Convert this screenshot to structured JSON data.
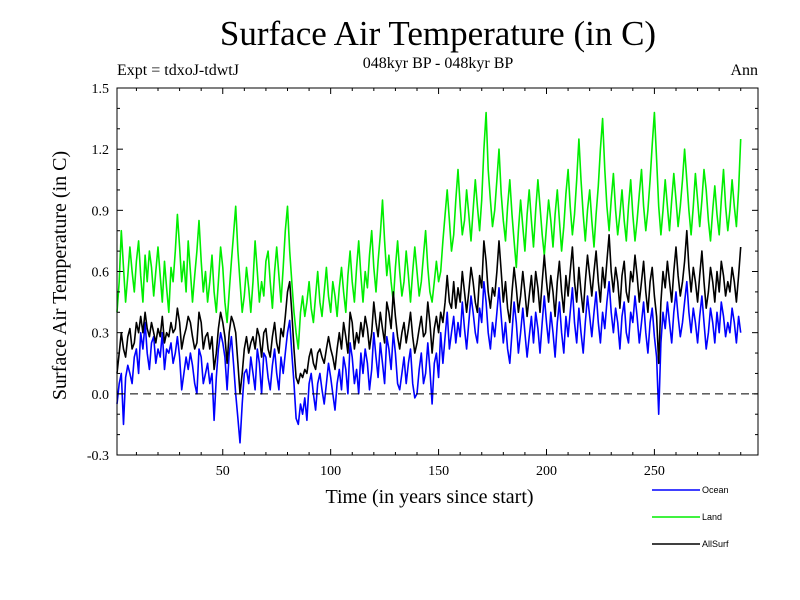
{
  "header": {
    "title": "Surface Air Temperature (in C)",
    "subtitle": "048kyr BP - 048kyr BP",
    "experiment": "Expt = tdxoJ-tdwtJ",
    "period": "Ann"
  },
  "chart_data": {
    "type": "line",
    "title": "Surface Air Temperature (in C)",
    "subtitle": "048kyr BP - 048kyr BP",
    "xlabel": "Time (in years since start)",
    "ylabel": "Surface Air Temperature (in C)",
    "xlim": [
      1,
      298
    ],
    "ylim": [
      -0.3,
      1.5
    ],
    "xticks": [
      50,
      100,
      150,
      200,
      250
    ],
    "yticks": [
      -0.3,
      0.0,
      0.3,
      0.6,
      0.9,
      1.2,
      1.5
    ],
    "ytick_labels": [
      "-0.3",
      "0.0",
      "0.3",
      "0.6",
      "0.9",
      "1.2",
      "1.5"
    ],
    "zero_line": "dashed",
    "grid": false,
    "legend_position": "bottom-right, outside plot",
    "x_step": 1,
    "series": [
      {
        "name": "Ocean",
        "color": "#0000ff",
        "values": [
          -0.05,
          0.05,
          0.1,
          -0.15,
          0.08,
          0.14,
          0.1,
          0.05,
          0.18,
          0.22,
          0.1,
          0.3,
          0.22,
          0.35,
          0.2,
          0.12,
          0.25,
          0.28,
          0.15,
          0.22,
          0.18,
          0.3,
          0.12,
          0.22,
          0.2,
          0.25,
          0.15,
          0.2,
          0.28,
          0.18,
          0.02,
          0.1,
          0.18,
          0.12,
          0.2,
          0.14,
          0.05,
          0.0,
          0.22,
          0.18,
          0.05,
          0.1,
          0.15,
          0.05,
          0.1,
          -0.13,
          0.08,
          0.22,
          0.3,
          0.25,
          0.18,
          0.02,
          0.2,
          0.28,
          0.15,
          0.0,
          -0.12,
          -0.24,
          -0.05,
          0.1,
          0.12,
          0.05,
          0.18,
          0.1,
          0.02,
          0.22,
          0.15,
          0.0,
          0.2,
          0.18,
          0.08,
          0.02,
          0.14,
          0.22,
          0.1,
          0.02,
          0.18,
          0.1,
          0.2,
          0.3,
          0.36,
          0.2,
          0.05,
          -0.12,
          -0.15,
          -0.05,
          -0.1,
          -0.02,
          -0.13,
          0.05,
          0.1,
          0.0,
          -0.08,
          0.05,
          0.1,
          0.02,
          -0.05,
          0.05,
          0.15,
          0.08,
          0.0,
          -0.08,
          0.05,
          0.12,
          0.02,
          0.18,
          0.12,
          0.0,
          0.25,
          0.18,
          0.05,
          0.12,
          0.0,
          0.2,
          0.1,
          0.22,
          0.15,
          0.02,
          0.12,
          0.3,
          0.18,
          0.08,
          0.25,
          0.15,
          0.05,
          0.28,
          0.22,
          0.12,
          0.3,
          0.2,
          0.05,
          0.02,
          0.1,
          0.18,
          0.05,
          0.15,
          0.22,
          0.05,
          -0.02,
          0.0,
          0.12,
          0.2,
          0.05,
          0.1,
          0.25,
          0.12,
          -0.05,
          0.15,
          0.2,
          0.08,
          0.3,
          0.15,
          0.28,
          0.4,
          0.22,
          0.3,
          0.38,
          0.25,
          0.35,
          0.28,
          0.45,
          0.32,
          0.22,
          0.35,
          0.48,
          0.4,
          0.3,
          0.25,
          0.42,
          0.35,
          0.55,
          0.45,
          0.3,
          0.22,
          0.35,
          0.28,
          0.4,
          0.52,
          0.38,
          0.25,
          0.35,
          0.22,
          0.15,
          0.3,
          0.45,
          0.35,
          0.2,
          0.3,
          0.42,
          0.3,
          0.18,
          0.28,
          0.38,
          0.25,
          0.4,
          0.32,
          0.2,
          0.35,
          0.48,
          0.35,
          0.25,
          0.4,
          0.3,
          0.18,
          0.35,
          0.45,
          0.3,
          0.2,
          0.38,
          0.28,
          0.4,
          0.52,
          0.35,
          0.25,
          0.42,
          0.3,
          0.2,
          0.35,
          0.48,
          0.38,
          0.28,
          0.4,
          0.5,
          0.35,
          0.25,
          0.4,
          0.32,
          0.45,
          0.55,
          0.4,
          0.3,
          0.42,
          0.35,
          0.22,
          0.38,
          0.45,
          0.3,
          0.25,
          0.4,
          0.35,
          0.48,
          0.38,
          0.25,
          0.35,
          0.45,
          0.3,
          0.2,
          0.35,
          0.42,
          0.28,
          0.18,
          -0.1,
          0.25,
          0.4,
          0.32,
          0.45,
          0.35,
          0.25,
          0.4,
          0.5,
          0.38,
          0.28,
          0.35,
          0.45,
          0.55,
          0.4,
          0.3,
          0.42,
          0.35,
          0.25,
          0.38,
          0.48,
          0.35,
          0.22,
          0.3,
          0.42,
          0.35,
          0.25,
          0.4,
          0.3,
          0.45,
          0.38,
          0.28,
          0.35,
          0.3,
          0.42,
          0.35,
          0.25,
          0.38,
          0.3
        ]
      },
      {
        "name": "Land",
        "color": "#00ee00",
        "values": [
          0.4,
          0.55,
          0.8,
          0.62,
          0.45,
          0.58,
          0.72,
          0.6,
          0.5,
          0.65,
          0.75,
          0.58,
          0.45,
          0.68,
          0.55,
          0.7,
          0.62,
          0.48,
          0.6,
          0.72,
          0.58,
          0.45,
          0.65,
          0.52,
          0.4,
          0.62,
          0.55,
          0.7,
          0.88,
          0.72,
          0.55,
          0.65,
          0.5,
          0.75,
          0.6,
          0.45,
          0.58,
          0.7,
          0.85,
          0.65,
          0.5,
          0.6,
          0.45,
          0.55,
          0.68,
          0.5,
          0.4,
          0.55,
          0.72,
          0.62,
          0.45,
          0.35,
          0.5,
          0.65,
          0.78,
          0.92,
          0.7,
          0.55,
          0.4,
          0.48,
          0.62,
          0.52,
          0.4,
          0.55,
          0.75,
          0.6,
          0.45,
          0.55,
          0.48,
          0.65,
          0.7,
          0.55,
          0.42,
          0.6,
          0.72,
          0.58,
          0.45,
          0.62,
          0.8,
          0.92,
          0.7,
          0.55,
          0.4,
          0.3,
          0.22,
          0.4,
          0.48,
          0.38,
          0.45,
          0.55,
          0.42,
          0.35,
          0.48,
          0.6,
          0.45,
          0.38,
          0.5,
          0.62,
          0.48,
          0.4,
          0.55,
          0.48,
          0.38,
          0.52,
          0.62,
          0.5,
          0.4,
          0.58,
          0.7,
          0.55,
          0.45,
          0.62,
          0.75,
          0.58,
          0.45,
          0.6,
          0.52,
          0.68,
          0.8,
          0.62,
          0.5,
          0.65,
          0.78,
          0.95,
          0.75,
          0.58,
          0.68,
          0.55,
          0.45,
          0.62,
          0.75,
          0.6,
          0.48,
          0.55,
          0.7,
          0.58,
          0.45,
          0.6,
          0.72,
          0.6,
          0.48,
          0.55,
          0.68,
          0.8,
          0.62,
          0.5,
          0.45,
          0.55,
          0.65,
          0.55,
          0.6,
          0.75,
          0.88,
          1.0,
          0.85,
          0.7,
          0.78,
          0.95,
          1.1,
          0.92,
          0.78,
          0.85,
          1.0,
          0.88,
          0.75,
          0.9,
          1.05,
          0.92,
          0.8,
          0.95,
          1.2,
          1.38,
          1.1,
          0.95,
          0.82,
          0.9,
          1.05,
          1.2,
          0.98,
          0.85,
          0.75,
          0.92,
          1.05,
          0.88,
          0.75,
          0.62,
          0.8,
          0.95,
          0.82,
          0.7,
          0.88,
          1.0,
          0.85,
          0.72,
          0.9,
          1.05,
          0.92,
          0.78,
          0.68,
          0.82,
          0.95,
          0.85,
          0.72,
          0.88,
          1.0,
          0.85,
          0.7,
          0.82,
          0.98,
          1.1,
          0.92,
          0.78,
          0.88,
          1.05,
          1.25,
          1.05,
          0.88,
          0.75,
          0.9,
          1.0,
          0.85,
          0.72,
          0.88,
          1.02,
          1.2,
          1.35,
          1.1,
          0.92,
          0.8,
          0.95,
          1.08,
          0.9,
          0.78,
          0.88,
          1.0,
          0.85,
          0.75,
          0.92,
          1.05,
          0.88,
          0.75,
          0.85,
          0.98,
          1.1,
          0.92,
          0.8,
          0.9,
          1.05,
          1.22,
          1.38,
          1.15,
          0.92,
          0.78,
          0.9,
          1.05,
          0.92,
          0.8,
          0.95,
          1.08,
          0.95,
          0.82,
          0.92,
          1.05,
          1.2,
          1.05,
          0.9,
          0.78,
          0.92,
          1.08,
          0.95,
          0.82,
          0.95,
          1.1,
          1.0,
          0.85,
          0.75,
          0.9,
          1.02,
          0.88,
          0.78,
          0.95,
          1.1,
          0.92,
          0.8,
          0.9,
          1.05,
          0.92,
          0.82,
          1.0,
          1.25
        ]
      },
      {
        "name": "AllSurf",
        "color": "#000000",
        "values": [
          0.1,
          0.2,
          0.3,
          0.22,
          0.18,
          0.28,
          0.32,
          0.22,
          0.25,
          0.35,
          0.3,
          0.38,
          0.3,
          0.4,
          0.32,
          0.28,
          0.35,
          0.3,
          0.25,
          0.32,
          0.28,
          0.38,
          0.25,
          0.3,
          0.28,
          0.35,
          0.3,
          0.32,
          0.42,
          0.35,
          0.22,
          0.28,
          0.32,
          0.38,
          0.35,
          0.28,
          0.22,
          0.25,
          0.4,
          0.35,
          0.22,
          0.28,
          0.3,
          0.22,
          0.28,
          0.12,
          0.2,
          0.32,
          0.4,
          0.35,
          0.28,
          0.15,
          0.3,
          0.38,
          0.35,
          0.3,
          0.15,
          0.0,
          0.1,
          0.22,
          0.28,
          0.2,
          0.25,
          0.28,
          0.22,
          0.32,
          0.28,
          0.18,
          0.3,
          0.32,
          0.22,
          0.18,
          0.28,
          0.35,
          0.25,
          0.2,
          0.32,
          0.28,
          0.38,
          0.5,
          0.55,
          0.4,
          0.22,
          0.08,
          0.05,
          0.1,
          0.08,
          0.12,
          0.1,
          0.18,
          0.22,
          0.15,
          0.12,
          0.2,
          0.22,
          0.18,
          0.15,
          0.22,
          0.28,
          0.22,
          0.18,
          0.12,
          0.22,
          0.3,
          0.22,
          0.35,
          0.28,
          0.2,
          0.4,
          0.35,
          0.22,
          0.3,
          0.25,
          0.35,
          0.28,
          0.38,
          0.32,
          0.22,
          0.3,
          0.45,
          0.35,
          0.28,
          0.4,
          0.32,
          0.25,
          0.45,
          0.4,
          0.32,
          0.5,
          0.38,
          0.28,
          0.22,
          0.3,
          0.35,
          0.25,
          0.32,
          0.4,
          0.28,
          0.2,
          0.25,
          0.32,
          0.38,
          0.28,
          0.3,
          0.45,
          0.35,
          0.2,
          0.32,
          0.38,
          0.3,
          0.4,
          0.35,
          0.45,
          0.58,
          0.45,
          0.42,
          0.55,
          0.42,
          0.52,
          0.45,
          0.6,
          0.5,
          0.4,
          0.5,
          0.62,
          0.55,
          0.45,
          0.4,
          0.58,
          0.52,
          0.75,
          0.65,
          0.5,
          0.42,
          0.52,
          0.48,
          0.6,
          0.75,
          0.6,
          0.45,
          0.55,
          0.42,
          0.35,
          0.5,
          0.62,
          0.52,
          0.4,
          0.48,
          0.6,
          0.5,
          0.38,
          0.48,
          0.58,
          0.45,
          0.6,
          0.52,
          0.4,
          0.55,
          0.68,
          0.55,
          0.45,
          0.58,
          0.5,
          0.38,
          0.55,
          0.65,
          0.5,
          0.4,
          0.58,
          0.48,
          0.6,
          0.72,
          0.55,
          0.45,
          0.62,
          0.5,
          0.4,
          0.55,
          0.68,
          0.58,
          0.48,
          0.6,
          0.7,
          0.55,
          0.45,
          0.62,
          0.52,
          0.65,
          0.78,
          0.6,
          0.5,
          0.62,
          0.55,
          0.42,
          0.58,
          0.65,
          0.5,
          0.45,
          0.6,
          0.55,
          0.68,
          0.58,
          0.45,
          0.55,
          0.65,
          0.5,
          0.4,
          0.55,
          0.62,
          0.48,
          0.38,
          0.15,
          0.45,
          0.6,
          0.52,
          0.65,
          0.55,
          0.45,
          0.6,
          0.72,
          0.58,
          0.48,
          0.55,
          0.65,
          0.8,
          0.62,
          0.5,
          0.62,
          0.55,
          0.45,
          0.58,
          0.7,
          0.55,
          0.42,
          0.5,
          0.62,
          0.55,
          0.45,
          0.6,
          0.5,
          0.65,
          0.58,
          0.48,
          0.55,
          0.5,
          0.62,
          0.55,
          0.45,
          0.58,
          0.72
        ]
      }
    ]
  }
}
